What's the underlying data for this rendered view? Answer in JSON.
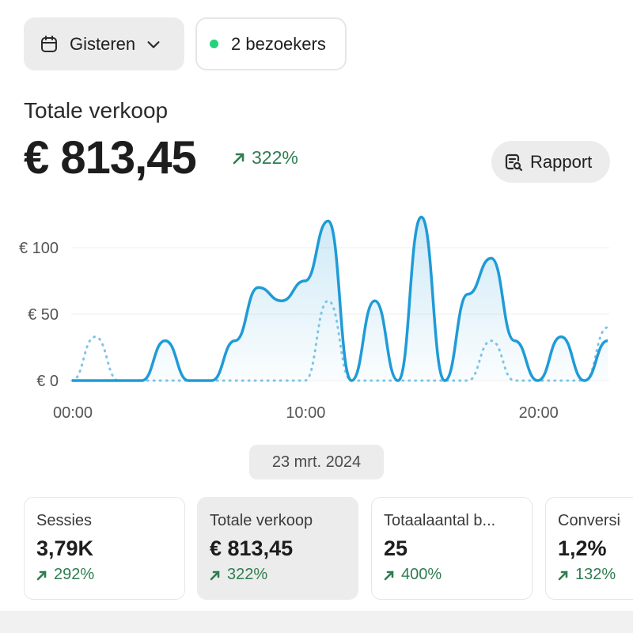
{
  "filters": {
    "date_label": "Gisteren",
    "date_icon": "calendar-icon",
    "visitors_label": "2 bezoekers",
    "visitors_dot_color": "#22d37a"
  },
  "sales": {
    "label": "Totale verkoop",
    "value": "€ 813,45",
    "change": "322%",
    "change_color": "#2e7d4f"
  },
  "report_button": {
    "label": "Rapport",
    "icon": "report-search-icon"
  },
  "chart_data": {
    "type": "line",
    "y_ticks": [
      "€ 100",
      "€ 50",
      "€ 0"
    ],
    "x_ticks": [
      "00:00",
      "10:00",
      "20:00"
    ],
    "ylim": [
      0,
      125
    ],
    "x": [
      0,
      1,
      2,
      3,
      4,
      5,
      6,
      7,
      8,
      9,
      10,
      11,
      12,
      13,
      14,
      15,
      16,
      17,
      18,
      19,
      20,
      21,
      22,
      23
    ],
    "series": [
      {
        "style": "solid",
        "color": "#1f9bd7",
        "values": [
          0,
          0,
          0,
          0,
          30,
          0,
          0,
          30,
          70,
          60,
          75,
          120,
          0,
          60,
          0,
          123,
          0,
          65,
          92,
          30,
          0,
          33,
          0,
          30
        ]
      },
      {
        "style": "dotted",
        "color": "#7ec4e6",
        "values": [
          0,
          33,
          0,
          0,
          0,
          0,
          0,
          0,
          0,
          0,
          0,
          60,
          0,
          0,
          0,
          0,
          0,
          0,
          30,
          0,
          0,
          0,
          0,
          40
        ]
      }
    ],
    "grid": true
  },
  "date_pill": "23 mrt. 2024",
  "cards": [
    {
      "label": "Sessies",
      "value": "3,79K",
      "change": "292%"
    },
    {
      "label": "Totale verkoop",
      "value": "€ 813,45",
      "change": "322%"
    },
    {
      "label": "Totaalaantal b...",
      "value": "25",
      "change": "400%"
    },
    {
      "label": "Conversie",
      "value": "1,2%",
      "change": "132%"
    }
  ]
}
